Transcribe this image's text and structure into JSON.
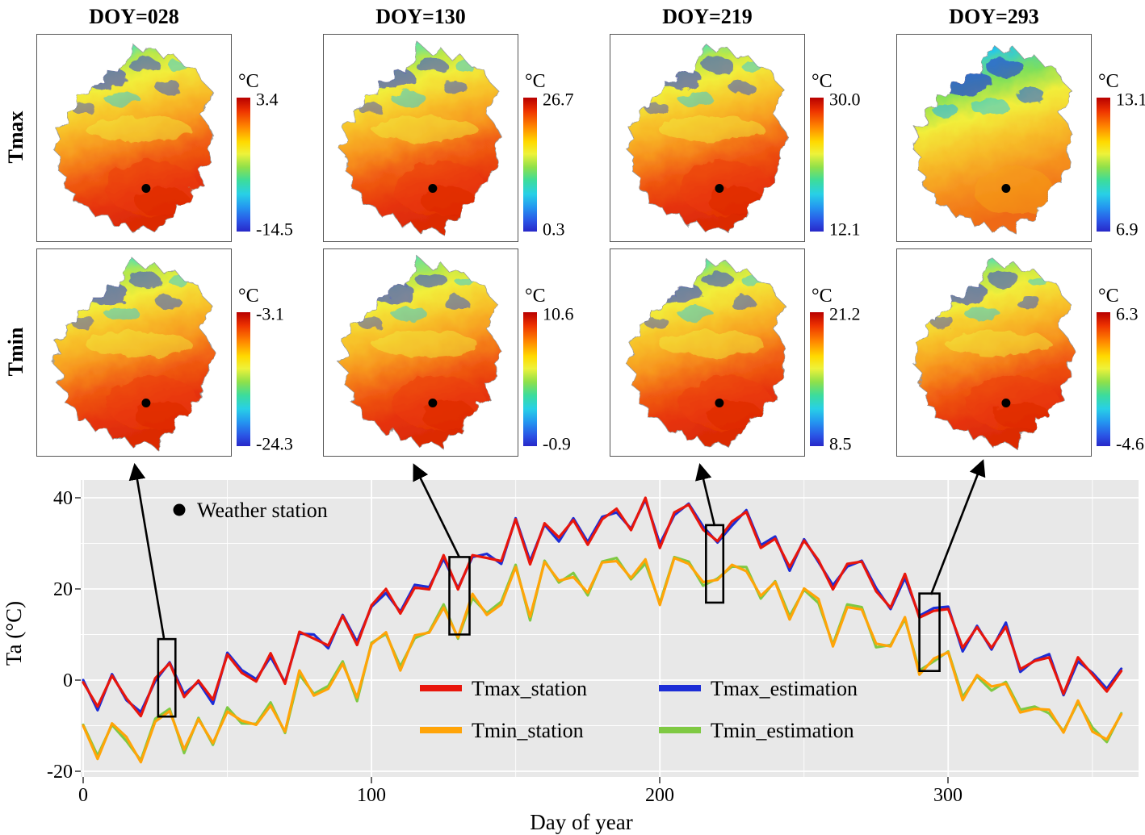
{
  "figure": {
    "col_titles": [
      "DOY=028",
      "DOY=130",
      "DOY=219",
      "DOY=293"
    ],
    "row_labels": [
      "Tmax",
      "Tmin"
    ],
    "station_marker_label": "Weather station",
    "panels": {
      "tmax": [
        {
          "doy": "028",
          "unit": "°C",
          "max": "3.4",
          "min": "-14.5"
        },
        {
          "doy": "130",
          "unit": "°C",
          "max": "26.7",
          "min": "0.3"
        },
        {
          "doy": "219",
          "unit": "°C",
          "max": "30.0",
          "min": "12.1"
        },
        {
          "doy": "293",
          "unit": "°C",
          "max": "13.1",
          "min": "6.9"
        }
      ],
      "tmin": [
        {
          "doy": "028",
          "unit": "°C",
          "max": "-3.1",
          "min": "-24.3"
        },
        {
          "doy": "130",
          "unit": "°C",
          "max": "10.6",
          "min": "-0.9"
        },
        {
          "doy": "219",
          "unit": "°C",
          "max": "21.2",
          "min": "8.5"
        },
        {
          "doy": "293",
          "unit": "°C",
          "max": "6.3",
          "min": "-4.6"
        }
      ]
    }
  },
  "chart": {
    "xlabel": "Day of year",
    "ylabel": "Ta (°C)",
    "xticks": [
      "0",
      "100",
      "200",
      "300"
    ],
    "yticks": [
      "40",
      "20",
      "0",
      "-20"
    ],
    "legend": [
      {
        "label": "Tmax_station",
        "color": "#e8160c"
      },
      {
        "label": "Tmax_estimation",
        "color": "#1c2dd6"
      },
      {
        "label": "Tmin_station",
        "color": "#ffa408"
      },
      {
        "label": "Tmin_estimation",
        "color": "#7fc943"
      }
    ]
  },
  "chart_data": {
    "type": "line",
    "xlabel": "Day of year",
    "ylabel": "Ta (°C)",
    "xlim": [
      0,
      366
    ],
    "ylim": [
      -22,
      44
    ],
    "xticks": [
      0,
      100,
      200,
      300
    ],
    "yticks": [
      -20,
      0,
      20,
      40
    ],
    "plot_background": "#e8e8e8",
    "grid": "white major and minor gridlines (ggplot style)",
    "legend_position": "inside lower center, two columns",
    "x": [
      0,
      5,
      10,
      15,
      20,
      25,
      30,
      35,
      40,
      45,
      50,
      55,
      60,
      65,
      70,
      75,
      80,
      85,
      90,
      95,
      100,
      105,
      110,
      115,
      120,
      125,
      130,
      135,
      140,
      145,
      150,
      155,
      160,
      165,
      170,
      175,
      180,
      185,
      190,
      195,
      200,
      205,
      210,
      215,
      220,
      225,
      230,
      235,
      240,
      245,
      250,
      255,
      260,
      265,
      270,
      275,
      280,
      285,
      290,
      295,
      300,
      305,
      310,
      315,
      320,
      325,
      330,
      335,
      340,
      345,
      350,
      355,
      360
    ],
    "series": [
      {
        "name": "Tmax_estimation",
        "color": "#1c2dd6",
        "values": [
          0.0,
          -6.6,
          1.3,
          -4.4,
          -7.0,
          -0.2,
          3.9,
          -3.0,
          -0.4,
          -5.2,
          6.0,
          2.2,
          0.2,
          5.1,
          -0.5,
          10.2,
          10.0,
          7.0,
          14.3,
          8.4,
          16.1,
          19.1,
          15.0,
          20.9,
          20.4,
          26.6,
          20.2,
          27.0,
          27.7,
          25.5,
          35.5,
          26.1,
          34.1,
          30.4,
          35.5,
          30.3,
          35.8,
          36.8,
          33.2,
          39.6,
          29.9,
          36.2,
          38.7,
          33.7,
          30.2,
          33.9,
          37.3,
          29.6,
          31.5,
          24.0,
          30.9,
          25.9,
          20.8,
          24.9,
          26.2,
          20.2,
          15.6,
          22.4,
          14.1,
          15.8,
          16.1,
          6.3,
          11.9,
          6.7,
          12.6,
          1.8,
          4.4,
          5.7,
          -3.3,
          4.1,
          1.6,
          -1.9,
          2.5
        ]
      },
      {
        "name": "Tmin_estimation",
        "color": "#7fc943",
        "values": [
          -9.8,
          -16.6,
          -9.8,
          -13.4,
          -17.6,
          -8.5,
          -6.3,
          -16.0,
          -8.3,
          -14.2,
          -6.0,
          -9.5,
          -9.6,
          -4.9,
          -11.6,
          1.2,
          -3.0,
          -1.3,
          4.1,
          -4.6,
          8.2,
          10.1,
          3.0,
          9.2,
          10.6,
          16.6,
          9.1,
          18.0,
          14.7,
          17.2,
          25.3,
          13.1,
          26.2,
          21.4,
          23.5,
          18.6,
          26.0,
          26.8,
          22.1,
          25.6,
          16.9,
          27.0,
          26.0,
          20.7,
          22.3,
          24.9,
          24.8,
          17.9,
          21.7,
          14.0,
          19.8,
          16.9,
          7.8,
          16.6,
          16.0,
          7.2,
          7.7,
          13.4,
          2.1,
          4.1,
          6.3,
          -3.7,
          0.8,
          -2.3,
          -0.4,
          -6.5,
          -5.8,
          -7.3,
          -11.2,
          -4.9,
          -10.4,
          -13.6,
          -7.3
        ]
      },
      {
        "name": "Tmax_station",
        "color": "#e8160c",
        "values": [
          -0.5,
          -5.8,
          1.0,
          -4.0,
          -7.9,
          0.4,
          3.7,
          -3.7,
          -0.1,
          -4.3,
          5.6,
          1.6,
          -0.3,
          5.9,
          -0.8,
          10.6,
          9.1,
          7.6,
          14.1,
          7.7,
          16.4,
          20.0,
          14.6,
          20.3,
          19.9,
          27.4,
          19.9,
          27.4,
          26.8,
          26.1,
          35.3,
          25.4,
          34.4,
          31.3,
          35.1,
          29.7,
          35.3,
          37.6,
          32.9,
          40.0,
          29.0,
          36.8,
          38.5,
          33.0,
          30.5,
          34.8,
          36.9,
          29.0,
          31.0,
          24.8,
          30.6,
          26.3,
          19.9,
          25.5,
          26.0,
          19.5,
          15.9,
          23.3,
          13.7,
          15.2,
          15.6,
          7.1,
          11.6,
          7.1,
          11.7,
          2.4,
          4.2,
          5.0,
          -3.0,
          5.0,
          1.2,
          -2.5,
          2.0
        ]
      },
      {
        "name": "Tmin_station",
        "color": "#ffa408",
        "values": [
          -10.0,
          -17.3,
          -9.5,
          -12.5,
          -18.0,
          -9.1,
          -6.8,
          -15.2,
          -8.6,
          -13.8,
          -6.9,
          -8.9,
          -9.8,
          -5.6,
          -11.3,
          2.1,
          -3.4,
          -1.9,
          3.6,
          -3.8,
          7.9,
          10.5,
          2.1,
          9.8,
          10.4,
          15.9,
          9.4,
          18.9,
          14.3,
          16.6,
          24.8,
          13.9,
          25.9,
          21.8,
          22.6,
          19.2,
          25.8,
          26.1,
          22.4,
          26.5,
          16.5,
          26.8,
          25.5,
          21.5,
          22.0,
          25.3,
          23.9,
          18.5,
          21.5,
          13.3,
          20.1,
          17.8,
          7.4,
          16.0,
          15.5,
          8.0,
          7.4,
          13.8,
          1.2,
          4.7,
          6.1,
          -4.4,
          1.1,
          -1.4,
          -0.8,
          -7.1,
          -6.3,
          -6.5,
          -11.5,
          -4.5,
          -11.3,
          -13.0,
          -7.5
        ]
      }
    ],
    "highlight_boxes": [
      {
        "day": 28,
        "x0": 26,
        "x1": 32,
        "ymin": -8,
        "ymax": 9
      },
      {
        "day": 130,
        "x0": 127,
        "x1": 134,
        "ymin": 10,
        "ymax": 27
      },
      {
        "day": 219,
        "x0": 216,
        "x1": 222,
        "ymin": 17,
        "ymax": 34
      },
      {
        "day": 293,
        "x0": 290,
        "x1": 297,
        "ymin": 2,
        "ymax": 19
      }
    ],
    "annotations": [
      {
        "label": "Weather station",
        "marker": "black dot"
      }
    ]
  }
}
